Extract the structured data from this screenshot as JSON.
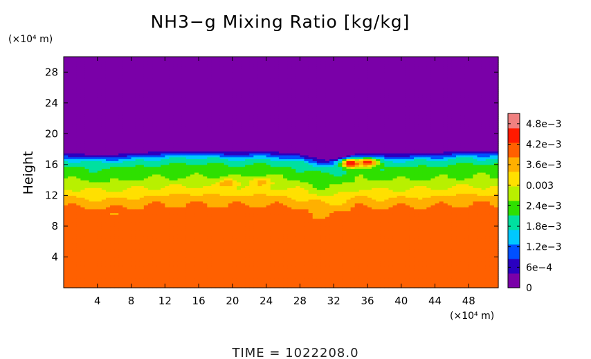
{
  "chart_data": {
    "type": "heatmap",
    "title": "NH3−g Mixing Ratio [kg/kg]",
    "ylabel": "Height",
    "y_unit": "(×10⁴ m)",
    "x_unit": "(×10⁴ m)",
    "xlim": [
      0,
      51.5
    ],
    "ylim": [
      0,
      30
    ],
    "x_ticks": [
      4,
      8,
      12,
      16,
      20,
      24,
      28,
      32,
      36,
      40,
      44,
      48
    ],
    "y_ticks": [
      4,
      8,
      12,
      16,
      20,
      24,
      28
    ],
    "colorbar": {
      "min": 0,
      "max": 0.0051,
      "ticks": [
        {
          "value": 0,
          "label": "0"
        },
        {
          "value": 0.0006,
          "label": "6e−4"
        },
        {
          "value": 0.0012,
          "label": "1.2e−3"
        },
        {
          "value": 0.0018,
          "label": "1.8e−3"
        },
        {
          "value": 0.0024,
          "label": "2.4e−3"
        },
        {
          "value": 0.003,
          "label": "0.003"
        },
        {
          "value": 0.0036,
          "label": "3.6e−3"
        },
        {
          "value": 0.0042,
          "label": "4.2e−3"
        },
        {
          "value": 0.0048,
          "label": "4.8e−3"
        }
      ],
      "colors": [
        "#7a00a8",
        "#2a00c0",
        "#0050ff",
        "#00c8ff",
        "#00e0a0",
        "#2ee000",
        "#b8f000",
        "#ffe000",
        "#ffb000",
        "#ff6000",
        "#ff1a00",
        "#f08080"
      ]
    },
    "vertical_profile": [
      {
        "height": 0,
        "value": 0.00405
      },
      {
        "height": 9.5,
        "value": 0.004
      },
      {
        "height": 10.8,
        "value": 0.0038
      },
      {
        "height": 12.0,
        "value": 0.0034
      },
      {
        "height": 13.0,
        "value": 0.003
      },
      {
        "height": 14.0,
        "value": 0.0026
      },
      {
        "height": 15.2,
        "value": 0.0023
      },
      {
        "height": 16.0,
        "value": 0.0021
      },
      {
        "height": 16.7,
        "value": 0.0017
      },
      {
        "height": 17.2,
        "value": 0.001
      },
      {
        "height": 17.6,
        "value": 0.0005
      },
      {
        "height": 18.0,
        "value": 0.0
      },
      {
        "height": 30.0,
        "value": 0.0
      }
    ],
    "cloud_top_height": [
      {
        "x": 0,
        "y": 17.6
      },
      {
        "x": 4,
        "y": 17.3
      },
      {
        "x": 8,
        "y": 17.5
      },
      {
        "x": 12,
        "y": 17.8
      },
      {
        "x": 16,
        "y": 17.9
      },
      {
        "x": 20,
        "y": 17.7
      },
      {
        "x": 24,
        "y": 17.8
      },
      {
        "x": 28,
        "y": 17.4
      },
      {
        "x": 31,
        "y": 16.6
      },
      {
        "x": 33,
        "y": 16.9
      },
      {
        "x": 35,
        "y": 17.6
      },
      {
        "x": 37,
        "y": 17.4
      },
      {
        "x": 40,
        "y": 17.5
      },
      {
        "x": 44,
        "y": 17.6
      },
      {
        "x": 48,
        "y": 17.9
      },
      {
        "x": 51.5,
        "y": 17.8
      }
    ],
    "hotspots": [
      {
        "x": 34.0,
        "y": 16.2,
        "value": 0.0048
      },
      {
        "x": 36.0,
        "y": 16.3,
        "value": 0.0046
      },
      {
        "x": 19.5,
        "y": 13.6,
        "value": 0.0038
      },
      {
        "x": 23.5,
        "y": 13.8,
        "value": 0.0038
      }
    ]
  },
  "footer": {
    "time_label": "TIME  =  1022208.0"
  }
}
